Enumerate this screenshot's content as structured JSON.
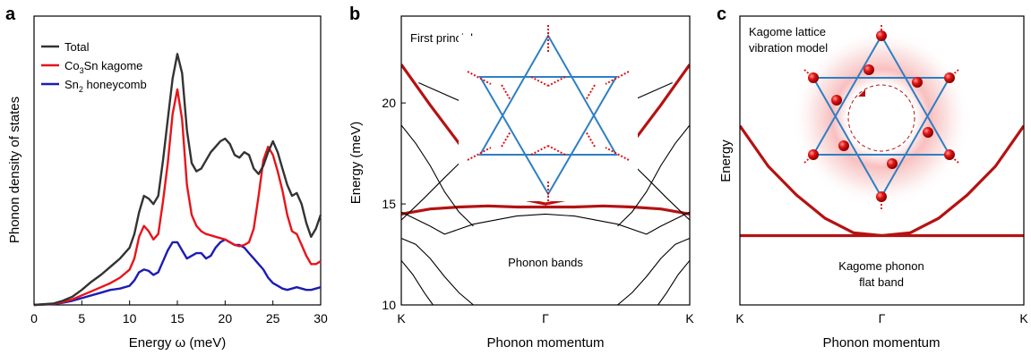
{
  "colors": {
    "total": "#333333",
    "kagome": "#e8141b",
    "honeycomb": "#1c1cb4",
    "band_flat": "#b51212",
    "band_other": "#000000",
    "lattice": "#2e7fc4",
    "spring": "#e01010"
  },
  "chart_data": [
    {
      "type": "line",
      "panel": "a",
      "xlabel": "Energy ω (meV)",
      "ylabel": "Phonon density of states",
      "xlim": [
        0,
        30
      ],
      "xticks": [
        "0",
        "5",
        "10",
        "15",
        "20",
        "25",
        "30"
      ],
      "legend_position": "top-left",
      "series": [
        {
          "name": "Total",
          "color": "#333333",
          "x": [
            0,
            2,
            3,
            4,
            5,
            6,
            7,
            8,
            9,
            10,
            10.5,
            11,
            11.5,
            12,
            12.5,
            13,
            13.5,
            14,
            14.5,
            15,
            15.5,
            16,
            16.5,
            17,
            17.5,
            18,
            18.5,
            19,
            19.5,
            20,
            20.5,
            21,
            21.5,
            22,
            22.5,
            23,
            23.5,
            24,
            24.5,
            25,
            25.5,
            26,
            26.5,
            27,
            27.5,
            28,
            28.5,
            29,
            29.5,
            30
          ],
          "y": [
            0,
            0.005,
            0.015,
            0.03,
            0.055,
            0.085,
            0.11,
            0.14,
            0.17,
            0.21,
            0.26,
            0.34,
            0.4,
            0.39,
            0.37,
            0.4,
            0.53,
            0.68,
            0.83,
            0.92,
            0.85,
            0.64,
            0.52,
            0.49,
            0.5,
            0.53,
            0.56,
            0.58,
            0.6,
            0.61,
            0.59,
            0.55,
            0.54,
            0.56,
            0.55,
            0.5,
            0.48,
            0.51,
            0.56,
            0.6,
            0.56,
            0.5,
            0.44,
            0.4,
            0.41,
            0.37,
            0.3,
            0.25,
            0.28,
            0.33
          ]
        },
        {
          "name": "Co3Sn kagome",
          "label_main": "Co",
          "label_sub1": "3",
          "label_mid": "Sn kagome",
          "color": "#e8141b",
          "x": [
            0,
            2,
            3,
            4,
            5,
            6,
            7,
            8,
            9,
            10,
            10.5,
            11,
            11.5,
            12,
            12.5,
            13,
            13.5,
            14,
            14.5,
            15,
            15.5,
            16,
            16.5,
            17,
            17.5,
            18,
            18.5,
            19,
            19.5,
            20,
            20.5,
            21,
            21.5,
            22,
            22.5,
            23,
            23.5,
            24,
            24.5,
            25,
            25.5,
            26,
            26.5,
            27,
            27.5,
            28,
            28.5,
            29,
            29.5,
            30
          ],
          "y": [
            0,
            0.004,
            0.01,
            0.02,
            0.035,
            0.05,
            0.065,
            0.08,
            0.1,
            0.13,
            0.17,
            0.25,
            0.29,
            0.27,
            0.24,
            0.26,
            0.38,
            0.52,
            0.7,
            0.79,
            0.68,
            0.44,
            0.33,
            0.29,
            0.27,
            0.26,
            0.255,
            0.25,
            0.245,
            0.24,
            0.23,
            0.22,
            0.215,
            0.22,
            0.23,
            0.28,
            0.4,
            0.53,
            0.58,
            0.55,
            0.49,
            0.42,
            0.33,
            0.27,
            0.26,
            0.22,
            0.18,
            0.15,
            0.15,
            0.16
          ]
        },
        {
          "name": "Sn2 honeycomb",
          "label_main": "Sn",
          "label_sub1": "2",
          "label_mid": " honeycomb",
          "color": "#1c1cb4",
          "x": [
            0,
            2,
            3,
            4,
            5,
            6,
            7,
            8,
            9,
            10,
            10.5,
            11,
            11.5,
            12,
            12.5,
            13,
            13.5,
            14,
            14.5,
            15,
            15.5,
            16,
            16.5,
            17,
            17.5,
            18,
            18.5,
            19,
            19.5,
            20,
            20.5,
            21,
            21.5,
            22,
            22.5,
            23,
            23.5,
            24,
            24.5,
            25,
            25.5,
            26,
            26.5,
            27,
            27.5,
            28,
            28.5,
            29,
            29.5,
            30
          ],
          "y": [
            0,
            0.003,
            0.008,
            0.015,
            0.025,
            0.035,
            0.045,
            0.055,
            0.06,
            0.07,
            0.09,
            0.12,
            0.13,
            0.125,
            0.11,
            0.12,
            0.16,
            0.2,
            0.23,
            0.23,
            0.2,
            0.17,
            0.18,
            0.19,
            0.19,
            0.17,
            0.18,
            0.21,
            0.23,
            0.24,
            0.23,
            0.22,
            0.22,
            0.21,
            0.19,
            0.17,
            0.15,
            0.13,
            0.1,
            0.08,
            0.07,
            0.06,
            0.055,
            0.06,
            0.065,
            0.06,
            0.055,
            0.055,
            0.06,
            0.065
          ]
        }
      ]
    },
    {
      "type": "line",
      "panel": "b",
      "xlabel": "Phonon momentum",
      "ylabel": "Energy (meV)",
      "ylim": [
        10,
        24.3
      ],
      "yticks": [
        10,
        15,
        20
      ],
      "xticks": [
        "K",
        "Γ",
        "K"
      ],
      "annotations": [
        "First principles",
        "Phonon bands"
      ],
      "series": [
        {
          "role": "flat",
          "x": [
            0,
            0.1,
            0.2,
            0.3,
            0.4,
            0.5,
            0.6,
            0.7,
            0.8,
            0.9,
            1.0
          ],
          "y": [
            14.5,
            14.75,
            14.85,
            14.9,
            14.85,
            14.85,
            14.85,
            14.9,
            14.85,
            14.75,
            14.5
          ]
        },
        {
          "role": "dispersive",
          "x": [
            0,
            0.1,
            0.2,
            0.3,
            0.4,
            0.5,
            0.6,
            0.7,
            0.8,
            0.9,
            1.0
          ],
          "y": [
            21.9,
            19.9,
            18.0,
            16.3,
            15.3,
            15.0,
            15.3,
            16.3,
            18.0,
            19.9,
            21.9
          ]
        },
        {
          "role": "other",
          "x": [
            0,
            0.05,
            0.1,
            0.15,
            0.2,
            0.25
          ],
          "y": [
            18.9,
            18.0,
            16.9,
            15.6,
            14.6,
            13.9
          ]
        },
        {
          "role": "other",
          "x": [
            0.75,
            0.8,
            0.85,
            0.9,
            0.95,
            1.0
          ],
          "y": [
            13.9,
            14.6,
            15.6,
            16.9,
            18.0,
            18.9
          ]
        },
        {
          "role": "other",
          "x": [
            0.06,
            0.25
          ],
          "y": [
            21.0,
            19.8
          ]
        },
        {
          "role": "other",
          "x": [
            0.75,
            0.94
          ],
          "y": [
            19.8,
            21.0
          ]
        },
        {
          "role": "other",
          "x": [
            0,
            0.08,
            0.15,
            0.2,
            0.25
          ],
          "y": [
            14.2,
            15.3,
            16.3,
            17.0,
            17.6
          ]
        },
        {
          "role": "other",
          "x": [
            0.75,
            0.8,
            0.85,
            0.92,
            1.0
          ],
          "y": [
            17.6,
            17.0,
            16.3,
            15.3,
            14.2
          ]
        },
        {
          "role": "other",
          "x": [
            0,
            0.1,
            0.15,
            0.25,
            0.4,
            0.5,
            0.6,
            0.75,
            0.85,
            0.9,
            1.0
          ],
          "y": [
            14.6,
            13.9,
            13.5,
            14.0,
            14.4,
            14.5,
            14.4,
            14.0,
            13.5,
            13.9,
            14.6
          ]
        },
        {
          "role": "other",
          "x": [
            0,
            0.05,
            0.1,
            0.15,
            0.2,
            0.25
          ],
          "y": [
            13.3,
            13.0,
            12.3,
            11.4,
            10.6,
            10.0
          ]
        },
        {
          "role": "other",
          "x": [
            0.75,
            0.8,
            0.85,
            0.9,
            0.95,
            1.0
          ],
          "y": [
            10.0,
            10.6,
            11.4,
            12.3,
            13.0,
            13.3
          ]
        },
        {
          "role": "other",
          "x": [
            0,
            0.04,
            0.08,
            0.11
          ],
          "y": [
            12.2,
            11.5,
            10.6,
            10.0
          ]
        },
        {
          "role": "other",
          "x": [
            0.89,
            0.92,
            0.96,
            1.0
          ],
          "y": [
            10.0,
            10.6,
            11.5,
            12.2
          ]
        }
      ]
    },
    {
      "type": "line",
      "panel": "c",
      "xlabel": "Phonon momentum",
      "ylabel": "Energy",
      "xticks": [
        "K",
        "Γ",
        "K"
      ],
      "annotations": [
        "Kagome lattice",
        "vibration model",
        "Kagome phonon",
        "flat band"
      ],
      "series": [
        {
          "role": "flat",
          "x": [
            0,
            1
          ],
          "y": [
            0.24,
            0.24
          ]
        },
        {
          "role": "dispersive",
          "x": [
            0,
            0.1,
            0.2,
            0.3,
            0.4,
            0.5,
            0.6,
            0.7,
            0.8,
            0.9,
            1.0
          ],
          "y": [
            0.62,
            0.48,
            0.38,
            0.3,
            0.25,
            0.24,
            0.25,
            0.3,
            0.38,
            0.48,
            0.62
          ]
        }
      ]
    }
  ],
  "panels": {
    "a": {
      "letter": "a",
      "ylabel": "Phonon density of states",
      "xlabel": "Energy ω (meV)",
      "xticks": [
        "0",
        "5",
        "10",
        "15",
        "20",
        "25",
        "30"
      ],
      "legend": {
        "total": "Total",
        "kagome_main": "Co",
        "kagome_sub": "3",
        "kagome_rest": "Sn kagome",
        "honey_main": "Sn",
        "honey_sub": "2",
        "honey_rest": " honeycomb"
      }
    },
    "b": {
      "letter": "b",
      "ylabel": "Energy (meV)",
      "xlabel": "Phonon momentum",
      "yticks": [
        "10",
        "15",
        "20"
      ],
      "xticks": [
        "K",
        "Γ",
        "K"
      ],
      "anno1": "First principles",
      "anno2": "Phonon bands"
    },
    "c": {
      "letter": "c",
      "ylabel": "Energy",
      "xlabel": "Phonon momentum",
      "xticks": [
        "K",
        "Γ",
        "K"
      ],
      "anno1": "Kagome lattice",
      "anno2": "vibration model",
      "anno3": "Kagome phonon",
      "anno4": "flat band"
    }
  }
}
